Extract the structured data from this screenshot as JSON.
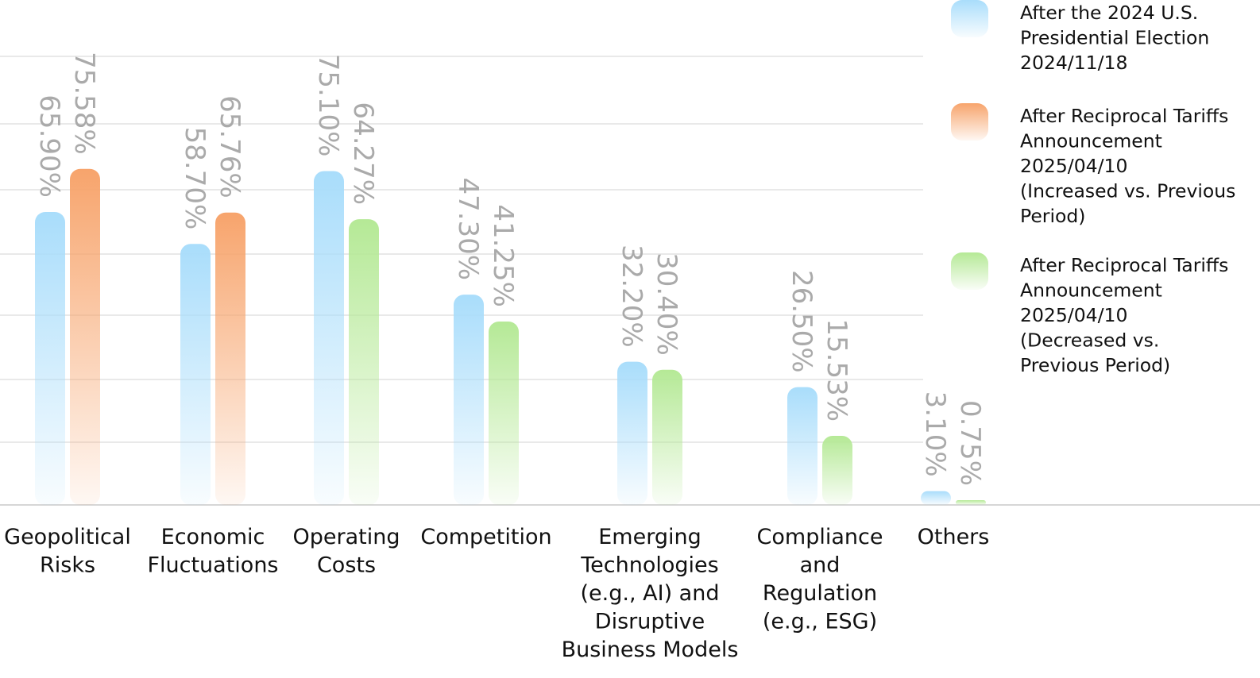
{
  "chart_data": {
    "type": "bar",
    "categories": [
      [
        "Geopolitical",
        "Risks"
      ],
      [
        "Economic",
        "Fluctuations"
      ],
      [
        "Operating",
        "Costs"
      ],
      [
        "Competition"
      ],
      [
        "Emerging",
        "Technologies",
        "(e.g., AI) and",
        "Disruptive",
        "Business Models"
      ],
      [
        "Compliance",
        "and",
        "Regulation",
        "(e.g., ESG)"
      ],
      [
        "Others"
      ]
    ],
    "bars": [
      [
        {
          "series": 0,
          "value": 65.9,
          "label": "65.90%"
        },
        {
          "series": 1,
          "value": 75.58,
          "label": "75.58%"
        }
      ],
      [
        {
          "series": 0,
          "value": 58.7,
          "label": "58.70%"
        },
        {
          "series": 1,
          "value": 65.76,
          "label": "65.76%"
        }
      ],
      [
        {
          "series": 0,
          "value": 75.1,
          "label": "75.10%"
        },
        {
          "series": 2,
          "value": 64.27,
          "label": "64.27%"
        }
      ],
      [
        {
          "series": 0,
          "value": 47.3,
          "label": "47.30%"
        },
        {
          "series": 2,
          "value": 41.25,
          "label": "41.25%"
        }
      ],
      [
        {
          "series": 0,
          "value": 32.2,
          "label": "32.20%"
        },
        {
          "series": 2,
          "value": 30.4,
          "label": "30.40%"
        }
      ],
      [
        {
          "series": 0,
          "value": 26.5,
          "label": "26.50%"
        },
        {
          "series": 2,
          "value": 15.53,
          "label": "15.53%"
        }
      ],
      [
        {
          "series": 0,
          "value": 3.1,
          "label": "3.10%"
        },
        {
          "series": 2,
          "value": 0.75,
          "label": "0.75%"
        }
      ]
    ],
    "series": [
      {
        "name": [
          "After the 2024 U.S.",
          "Presidential Election",
          "2024/11/18"
        ],
        "color": "#a9ddfb"
      },
      {
        "name": [
          "After Reciprocal Tariffs",
          "Announcement",
          "2025/04/10",
          "(Increased vs. Previous",
          "Period)"
        ],
        "color": "#f7a46c"
      },
      {
        "name": [
          "After Reciprocal Tariffs",
          "Announcement",
          "2025/04/10",
          "(Decreased vs.",
          "Previous Period)"
        ],
        "color": "#b5e996"
      }
    ],
    "legend_position": "right",
    "grid": true,
    "ylim": [
      0,
      100
    ]
  }
}
